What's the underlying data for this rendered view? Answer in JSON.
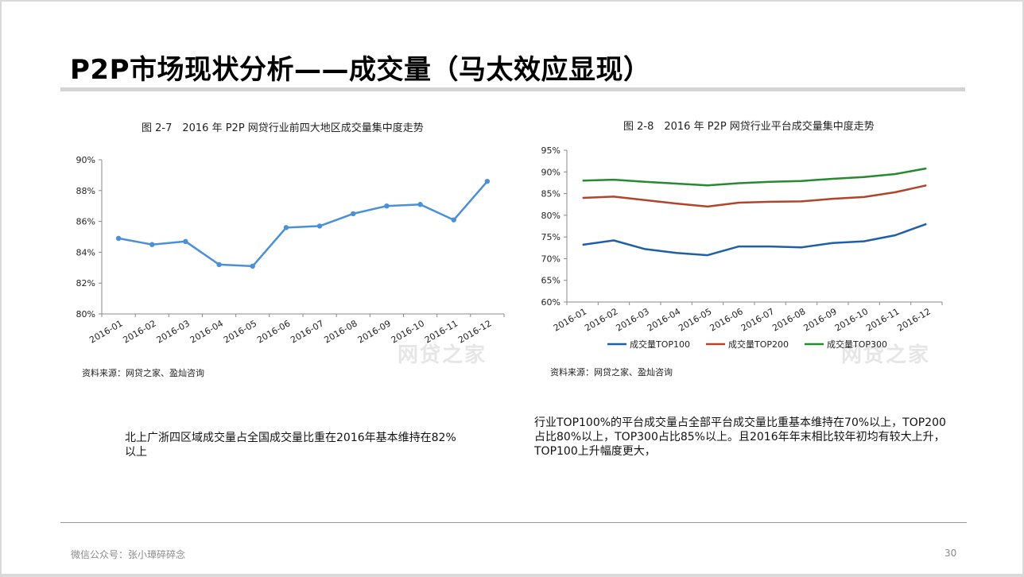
{
  "slide": {
    "title": "P2P市场现状分析——成交量（马太效应显现）",
    "footer": "微信公众号：张小璋碎碎念",
    "page_number": "30"
  },
  "left_panel": {
    "chart_title": "图 2-7　2016 年 P2P 网贷行业前四大地区成交量集中度走势",
    "source": "资料来源：网贷之家、盈灿咨询",
    "watermark": "网贷之家",
    "caption": "北上广浙四区域成交量占全国成交量比重在2016年基本维持在82%以上"
  },
  "right_panel": {
    "chart_title": "图 2-8　2016 年 P2P 网贷行业平台成交量集中度走势",
    "source": "资料来源：网贷之家、盈灿咨询",
    "watermark": "网贷之家",
    "caption": "行业TOP100%的平台成交量占全部平台成交量比重基本维持在70%以上，TOP200占比80%以上，TOP300占比85%以上。且2016年年末相比较年初均有较大上升，TOP100上升幅度更大，"
  },
  "chart_data": [
    {
      "type": "line",
      "title": "图 2-7　2016 年 P2P 网贷行业前四大地区成交量集中度走势",
      "categories": [
        "2016-01",
        "2016-02",
        "2016-03",
        "2016-04",
        "2016-05",
        "2016-06",
        "2016-07",
        "2016-08",
        "2016-09",
        "2016-10",
        "2016-11",
        "2016-12"
      ],
      "series": [
        {
          "values": [
            84.9,
            84.5,
            84.7,
            83.2,
            83.1,
            85.6,
            85.7,
            86.5,
            87.0,
            87.1,
            86.1,
            88.6
          ],
          "color": "#4a90d9"
        }
      ],
      "ylim": [
        80,
        90
      ],
      "yticks": [
        80,
        82,
        84,
        86,
        88,
        90
      ],
      "ytick_format": "%",
      "grid": false,
      "markers": true
    },
    {
      "type": "line",
      "title": "图 2-8　2016 年 P2P 网贷行业平台成交量集中度走势",
      "categories": [
        "2016-01",
        "2016-02",
        "2016-03",
        "2016-04",
        "2016-05",
        "2016-06",
        "2016-07",
        "2016-08",
        "2016-09",
        "2016-10",
        "2016-11",
        "2016-12"
      ],
      "series": [
        {
          "name": "成交量TOP100",
          "values": [
            73.2,
            74.2,
            72.2,
            71.3,
            70.8,
            72.8,
            72.8,
            72.6,
            73.6,
            74.0,
            75.4,
            78.0
          ],
          "color": "#1f5fa8"
        },
        {
          "name": "成交量TOP200",
          "values": [
            84.0,
            84.3,
            83.5,
            82.7,
            82.0,
            82.9,
            83.1,
            83.2,
            83.8,
            84.2,
            85.3,
            86.9
          ],
          "color": "#b2442a"
        },
        {
          "name": "成交量TOP300",
          "values": [
            88.0,
            88.2,
            87.7,
            87.3,
            86.9,
            87.4,
            87.7,
            87.9,
            88.4,
            88.8,
            89.5,
            90.8
          ],
          "color": "#268a2e"
        }
      ],
      "ylim": [
        60,
        95
      ],
      "yticks": [
        60,
        65,
        70,
        75,
        80,
        85,
        90,
        95
      ],
      "ytick_format": "%",
      "grid": false,
      "legend": "bottom"
    }
  ]
}
